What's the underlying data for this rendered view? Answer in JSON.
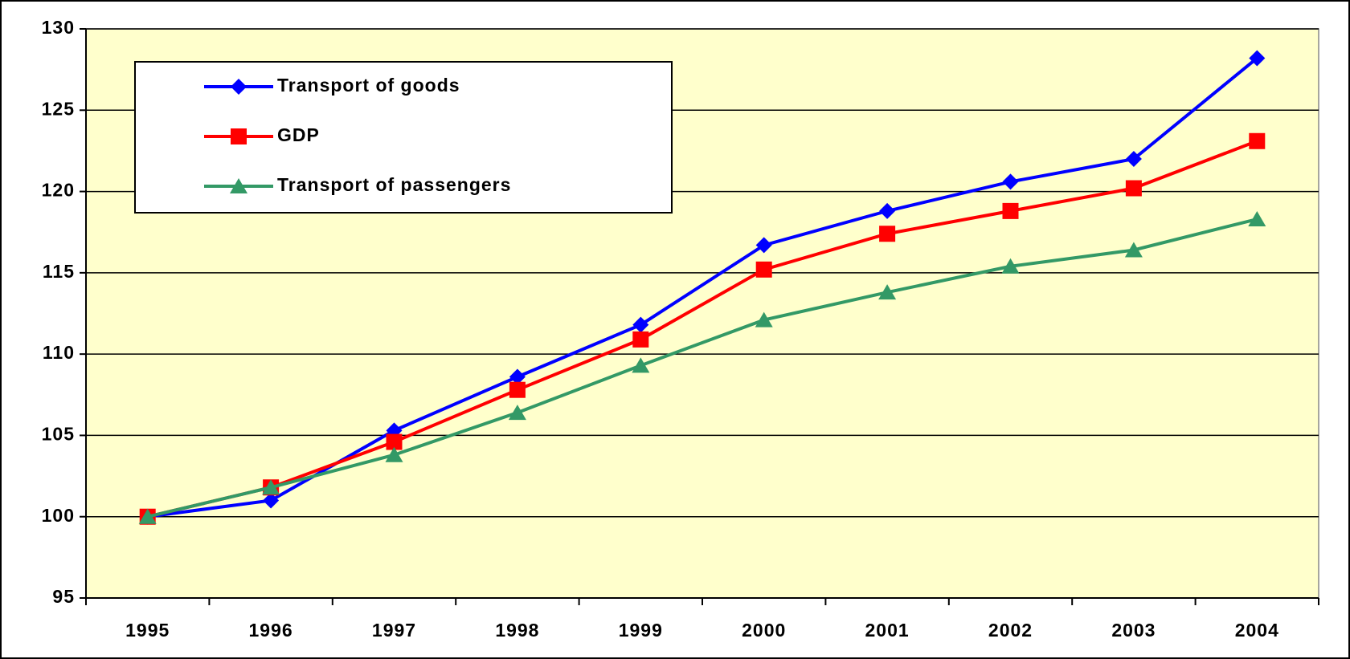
{
  "chart_data": {
    "type": "line",
    "categories": [
      "1995",
      "1996",
      "1997",
      "1998",
      "1999",
      "2000",
      "2001",
      "2002",
      "2003",
      "2004"
    ],
    "series": [
      {
        "name": "Transport of goods",
        "color": "#0000ff",
        "marker": "diamond",
        "values": [
          100,
          101,
          105.3,
          108.6,
          111.8,
          116.7,
          118.8,
          120.6,
          122,
          128.2
        ]
      },
      {
        "name": "GDP",
        "color": "#ff0000",
        "marker": "square",
        "values": [
          100,
          101.8,
          104.6,
          107.8,
          110.9,
          115.2,
          117.4,
          118.8,
          120.2,
          123.1
        ]
      },
      {
        "name": "Transport of passengers",
        "color": "#339966",
        "marker": "triangle",
        "values": [
          100,
          101.8,
          103.8,
          106.4,
          109.3,
          112.1,
          113.8,
          115.4,
          116.4,
          118.3
        ]
      }
    ],
    "ylim": [
      95,
      130
    ],
    "yticks": [
      95,
      100,
      105,
      110,
      115,
      120,
      125,
      130
    ],
    "grid": true,
    "legend": "top-left"
  }
}
